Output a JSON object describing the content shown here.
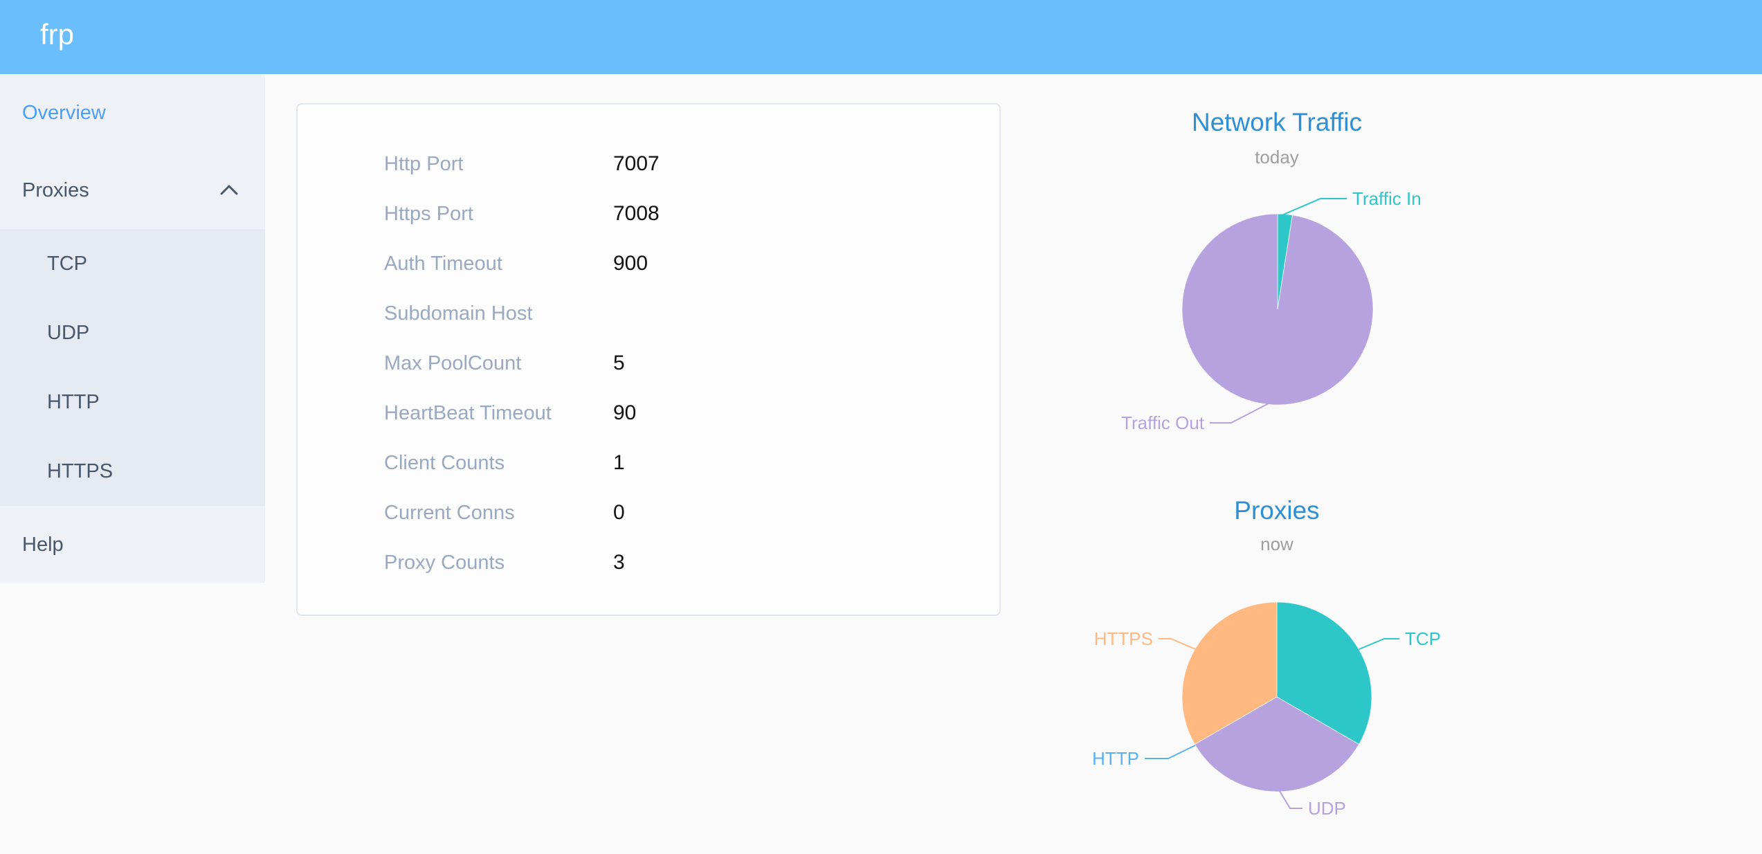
{
  "header": {
    "logo": "frp"
  },
  "sidebar": {
    "overview": "Overview",
    "proxies": "Proxies",
    "tcp": "TCP",
    "udp": "UDP",
    "http": "HTTP",
    "https": "HTTPS",
    "help": "Help"
  },
  "server_info": {
    "rows": [
      {
        "label": "Http Port",
        "value": "7007"
      },
      {
        "label": "Https Port",
        "value": "7008"
      },
      {
        "label": "Auth Timeout",
        "value": "900"
      },
      {
        "label": "Subdomain Host",
        "value": ""
      },
      {
        "label": "Max PoolCount",
        "value": "5"
      },
      {
        "label": "HeartBeat Timeout",
        "value": "90"
      },
      {
        "label": "Client Counts",
        "value": "1"
      },
      {
        "label": "Current Conns",
        "value": "0"
      },
      {
        "label": "Proxy Counts",
        "value": "3"
      }
    ]
  },
  "chart_data": [
    {
      "type": "pie",
      "title": "Network Traffic",
      "subtitle": "today",
      "legend_position": "callout-labels",
      "series": [
        {
          "name": "Traffic In",
          "value_percent": 2.5,
          "color": "#2ec7c9"
        },
        {
          "name": "Traffic Out",
          "value_percent": 97.5,
          "color": "#b6a2de"
        }
      ]
    },
    {
      "type": "pie",
      "title": "Proxies",
      "subtitle": "now",
      "legend_position": "callout-labels",
      "series": [
        {
          "name": "TCP",
          "value": 1,
          "color": "#2ec7c9"
        },
        {
          "name": "UDP",
          "value": 1,
          "color": "#b6a2de"
        },
        {
          "name": "HTTP",
          "value": 0,
          "color": "#5ab1ef"
        },
        {
          "name": "HTTPS",
          "value": 1,
          "color": "#ffb980"
        }
      ]
    }
  ],
  "colors": {
    "header_bg": "#69befb",
    "sidebar_bg": "#eef1f6",
    "submenu_bg": "#e6eaf2",
    "menu_text": "#48576a",
    "active_link": "#4a9ff8",
    "page_bg": "#fafafb",
    "card_bg": "#fdfdfe",
    "card_border": "#e2e6f0",
    "config_label": "#99a9bf",
    "config_value": "#111111",
    "chart_title": "#2e8fd4",
    "chart_subtitle": "#9e9e9e",
    "pie_teal": "#2ec7c9",
    "pie_purple": "#b6a2de",
    "pie_blue": "#5ab1ef",
    "pie_orange": "#ffb980"
  }
}
